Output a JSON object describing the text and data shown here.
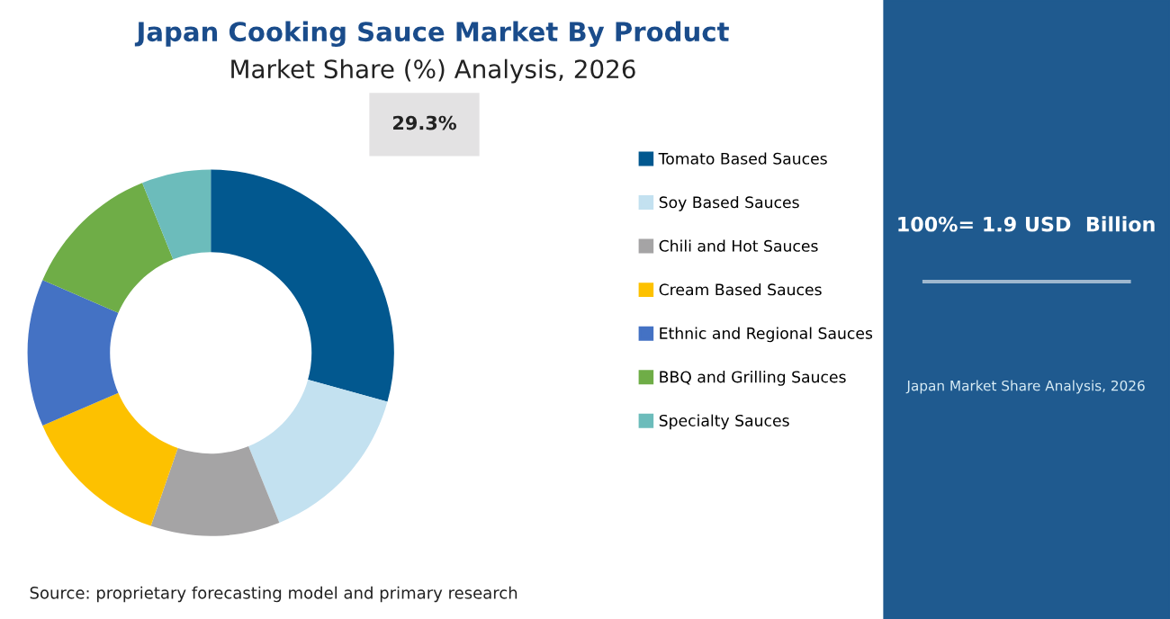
{
  "chart_data": {
    "type": "donut",
    "title": "Japan Cooking Sauce Market By Product",
    "subtitle": "Market Share (%) Analysis, 2026",
    "categories": [
      "Tomato Based Sauces",
      "Soy Based Sauces",
      "Chili and Hot Sauces",
      "Cream Based Sauces",
      "Ethnic and Regional Sauces",
      "BBQ and Grilling Sauces",
      "Specialty Sauces"
    ],
    "values": [
      29.3,
      14.6,
      11.4,
      13.2,
      13.0,
      12.4,
      6.1
    ],
    "colors": [
      "#02588f",
      "#c3e1f0",
      "#a5a4a5",
      "#fdc100",
      "#4472c4",
      "#6fad47",
      "#6cbcbb"
    ],
    "value_labels": [
      "29.3%",
      null,
      null,
      null,
      null,
      null,
      null
    ],
    "legend": "right",
    "annotations": [
      "100%= 1.9 USD  Billion",
      "Japan Market Share Analysis, 2026",
      "Source: proprietary forecasting model and primary research"
    ]
  }
}
